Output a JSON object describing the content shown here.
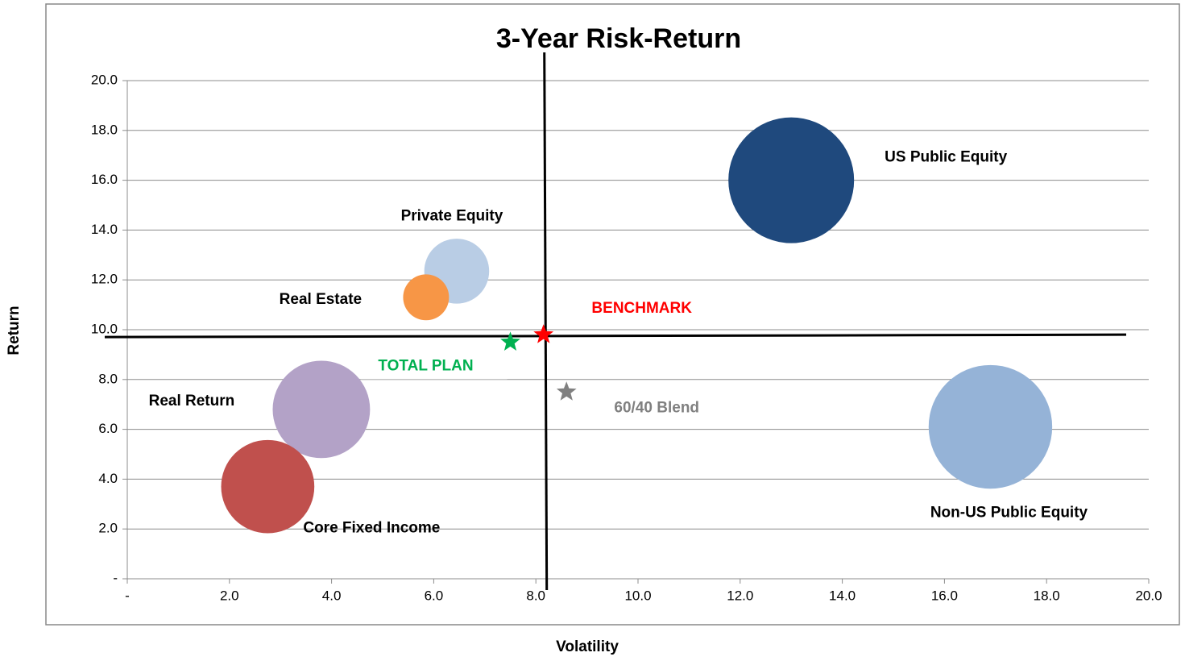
{
  "chart_data": {
    "type": "bubble",
    "title": "3-Year Risk-Return",
    "xlabel": "Volatility",
    "ylabel": "Return",
    "xlim": [
      0,
      20
    ],
    "ylim": [
      0,
      20
    ],
    "xticks": [
      {
        "value": 0,
        "label": "-"
      },
      {
        "value": 2,
        "label": "2.0"
      },
      {
        "value": 4,
        "label": "4.0"
      },
      {
        "value": 6,
        "label": "6.0"
      },
      {
        "value": 8,
        "label": "8.0"
      },
      {
        "value": 10,
        "label": "10.0"
      },
      {
        "value": 12,
        "label": "12.0"
      },
      {
        "value": 14,
        "label": "14.0"
      },
      {
        "value": 16,
        "label": "16.0"
      },
      {
        "value": 18,
        "label": "18.0"
      },
      {
        "value": 20,
        "label": "20.0"
      }
    ],
    "yticks": [
      {
        "value": 0,
        "label": "-"
      },
      {
        "value": 2,
        "label": "2.0"
      },
      {
        "value": 4,
        "label": "4.0"
      },
      {
        "value": 6,
        "label": "6.0"
      },
      {
        "value": 8,
        "label": "8.0"
      },
      {
        "value": 10,
        "label": "10.0"
      },
      {
        "value": 12,
        "label": "12.0"
      },
      {
        "value": 14,
        "label": "14.0"
      },
      {
        "value": 16,
        "label": "16.0"
      },
      {
        "value": 18,
        "label": "18.0"
      },
      {
        "value": 20,
        "label": "20.0"
      }
    ],
    "grid": true,
    "series": [
      {
        "name": "US Public Equity",
        "color": "#1f497d",
        "x": [
          13.0
        ],
        "y": [
          16.0
        ],
        "size": [
          60
        ]
      },
      {
        "name": "Non-US Public Equity",
        "color": "#95b3d7",
        "x": [
          16.9
        ],
        "y": [
          6.1
        ],
        "size": [
          58
        ]
      },
      {
        "name": "Private Equity",
        "color": "#b9cde5",
        "x": [
          6.45
        ],
        "y": [
          12.35
        ],
        "size": [
          16
        ]
      },
      {
        "name": "Real Estate",
        "color": "#f79646",
        "x": [
          5.85
        ],
        "y": [
          11.3
        ],
        "size": [
          8
        ]
      },
      {
        "name": "Real Return",
        "color": "#b3a2c7",
        "x": [
          3.8
        ],
        "y": [
          6.8
        ],
        "size": [
          36
        ]
      },
      {
        "name": "Core Fixed Income",
        "color": "#c0504d",
        "x": [
          2.75
        ],
        "y": [
          3.7
        ],
        "size": [
          33
        ]
      },
      {
        "name": "BENCHMARK",
        "color": "#ff0000",
        "marker": "star",
        "x": [
          8.15
        ],
        "y": [
          9.8
        ]
      },
      {
        "name": "TOTAL PLAN",
        "color": "#00b050",
        "marker": "star",
        "x": [
          7.5
        ],
        "y": [
          9.5
        ]
      },
      {
        "name": "60/40 Blend",
        "color": "#808080",
        "marker": "star",
        "x": [
          8.6
        ],
        "y": [
          7.5
        ]
      }
    ]
  }
}
